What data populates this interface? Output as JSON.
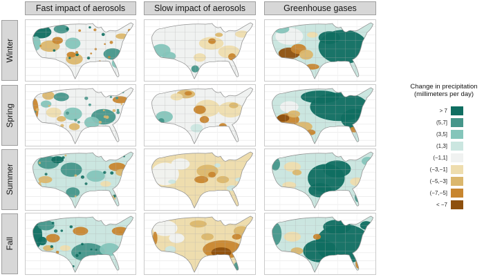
{
  "figure": {
    "columns": [
      {
        "id": "fast",
        "label": "Fast impact of aerosols"
      },
      {
        "id": "slow",
        "label": "Slow impact of aerosols"
      },
      {
        "id": "ghg",
        "label": "Greenhouse gases"
      }
    ],
    "rows": [
      {
        "id": "winter",
        "label": "Winter"
      },
      {
        "id": "spring",
        "label": "Spring"
      },
      {
        "id": "summer",
        "label": "Summer"
      },
      {
        "id": "fall",
        "label": "Fall"
      }
    ]
  },
  "legend": {
    "title_line1": "Change in precipitation",
    "title_line2": "(millimeters per day)",
    "bins": [
      {
        "label": "> 7",
        "color": "#0f6e61"
      },
      {
        "label": "(5,7]",
        "color": "#45968a"
      },
      {
        "label": "(3,5]",
        "color": "#84c5ba"
      },
      {
        "label": "(1,3]",
        "color": "#cbe6e0"
      },
      {
        "label": "(−1,1]",
        "color": "#f0f2f1"
      },
      {
        "label": "(−3,−1]",
        "color": "#eeddae"
      },
      {
        "label": "(−5,−3]",
        "color": "#dbb76d"
      },
      {
        "label": "(−7,−5]",
        "color": "#c8862f"
      },
      {
        "label": "< −7",
        "color": "#8e500e"
      }
    ]
  },
  "panels": [
    {
      "season": "Winter",
      "forcing": "Fast impact of aerosols",
      "pattern": "speckled; wetter Northwest and Southeast, drier interior West and Texas"
    },
    {
      "season": "Winter",
      "forcing": "Slow impact of aerosols",
      "pattern": "mostly neutral; slightly wetter Southwest, drier Midwest and Southeast"
    },
    {
      "season": "Winter",
      "forcing": "Greenhouse gases",
      "pattern": "strongly wetter East and Midwest; strongly drier Southwest"
    },
    {
      "season": "Spring",
      "forcing": "Fast impact of aerosols",
      "pattern": "speckled; wetter Mid-South and Southeast, drier California coast and Northeast"
    },
    {
      "season": "Spring",
      "forcing": "Slow impact of aerosols",
      "pattern": "drier central Plains and Midwest; slightly wetter Southwest and south Texas"
    },
    {
      "season": "Spring",
      "forcing": "Greenhouse gases",
      "pattern": "strongly wetter North and East; strongly drier Southwest and Texas"
    },
    {
      "season": "Summer",
      "forcing": "Fast impact of aerosols",
      "pattern": "speckled; wetter North and central US, drier Northeast and parts of West"
    },
    {
      "season": "Summer",
      "forcing": "Slow impact of aerosols",
      "pattern": "mostly slightly drier; driest central Plains and Midwest"
    },
    {
      "season": "Summer",
      "forcing": "Greenhouse gases",
      "pattern": "strongly wetter central US and Midwest; drier Northwest interior, Southwest and Southeast coast"
    },
    {
      "season": "Fall",
      "forcing": "Fast impact of aerosols",
      "pattern": "speckled; wetter West Coast and South, drier northern Plains and Northeast"
    },
    {
      "season": "Fall",
      "forcing": "Slow impact of aerosols",
      "pattern": "strongly drier South and Southeast; neutral Northwest; wetter Florida tip"
    },
    {
      "season": "Fall",
      "forcing": "Greenhouse gases",
      "pattern": "strongly wetter East and most of US; drier Florida peninsula and interior West patches"
    }
  ]
}
